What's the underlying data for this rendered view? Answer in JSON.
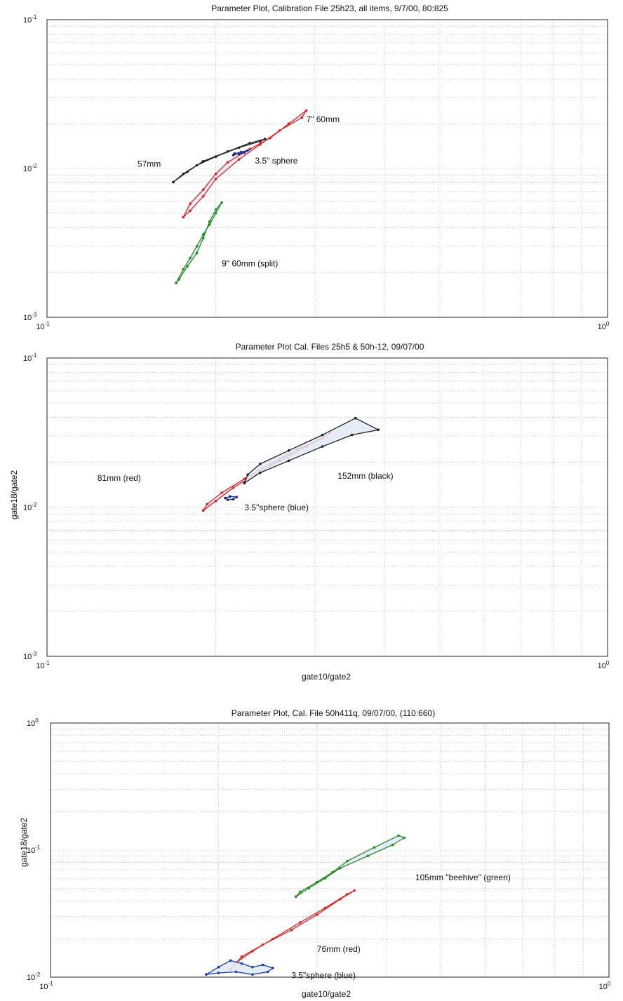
{
  "chart_data": [
    {
      "type": "line",
      "title": "Parameter Plot, Calibration File 25h23, all items, 9/7/00, 80:825",
      "xlabel": "",
      "ylabel": "",
      "xscale": "log",
      "yscale": "log",
      "xlim": [
        0.1,
        1
      ],
      "ylim": [
        0.001,
        0.1
      ],
      "grid": true,
      "x_ticks": [
        {
          "base": "10",
          "exp": "-1"
        },
        {
          "base": "10",
          "exp": "0"
        }
      ],
      "y_ticks": [
        {
          "base": "10",
          "exp": "-3"
        },
        {
          "base": "10",
          "exp": "-2"
        },
        {
          "base": "10",
          "exp": "-1"
        }
      ],
      "series": [
        {
          "color": "#e02020",
          "x": [
            0.175,
            0.18,
            0.19,
            0.2,
            0.21,
            0.23,
            0.25,
            0.27,
            0.29,
            0.285,
            0.26,
            0.24,
            0.22,
            0.2,
            0.19,
            0.18,
            0.175
          ],
          "y": [
            0.0047,
            0.0058,
            0.0072,
            0.0092,
            0.011,
            0.0135,
            0.016,
            0.02,
            0.0245,
            0.022,
            0.018,
            0.0145,
            0.0115,
            0.0085,
            0.0065,
            0.0052,
            0.0047
          ]
        },
        {
          "color": "#222222",
          "x": [
            0.168,
            0.175,
            0.185,
            0.2,
            0.22,
            0.24,
            0.245,
            0.23,
            0.21,
            0.19,
            0.178,
            0.168
          ],
          "y": [
            0.0081,
            0.0092,
            0.0105,
            0.012,
            0.0138,
            0.0152,
            0.0158,
            0.0148,
            0.013,
            0.0112,
            0.0095,
            0.0081
          ]
        },
        {
          "color": "#1a2a8a",
          "x": [
            0.215,
            0.22,
            0.225,
            0.228,
            0.222,
            0.216,
            0.215
          ],
          "y": [
            0.0123,
            0.0125,
            0.0128,
            0.0132,
            0.0129,
            0.0126,
            0.0123
          ]
        },
        {
          "color": "#228b22",
          "x": [
            0.17,
            0.175,
            0.18,
            0.185,
            0.19,
            0.195,
            0.2,
            0.205,
            0.2,
            0.195,
            0.19,
            0.185,
            0.178,
            0.172,
            0.17
          ],
          "y": [
            0.0017,
            0.0021,
            0.0025,
            0.003,
            0.0036,
            0.0042,
            0.005,
            0.0059,
            0.0053,
            0.0044,
            0.0034,
            0.0027,
            0.0022,
            0.0018,
            0.0017
          ]
        }
      ],
      "annotations": [
        {
          "text": "7\" 60mm",
          "x": 0.29,
          "y": 0.0205
        },
        {
          "text": "57mm",
          "x": 0.145,
          "y": 0.0103
        },
        {
          "text": "3.5\" sphere",
          "x": 0.235,
          "y": 0.0108
        },
        {
          "text": "9\" 60mm (split)",
          "x": 0.205,
          "y": 0.0022
        }
      ]
    },
    {
      "type": "line",
      "title": "Parameter Plot Cal. Files 25h5 & 50h-12, 09/07/00",
      "xlabel": "gate10/gate2",
      "ylabel": "gate18/gate2",
      "xscale": "log",
      "yscale": "log",
      "xlim": [
        0.1,
        1
      ],
      "ylim": [
        0.001,
        0.1
      ],
      "grid": true,
      "x_ticks": [
        {
          "base": "10",
          "exp": "-1"
        },
        {
          "base": "10",
          "exp": "0"
        }
      ],
      "y_ticks": [
        {
          "base": "10",
          "exp": "-3"
        },
        {
          "base": "10",
          "exp": "-2"
        },
        {
          "base": "10",
          "exp": "-1"
        }
      ],
      "series": [
        {
          "color": "#e02020",
          "x": [
            0.19,
            0.2,
            0.215,
            0.235,
            0.26,
            0.29,
            0.32,
            0.31,
            0.28,
            0.25,
            0.225,
            0.205,
            0.193,
            0.19
          ],
          "y": [
            0.0095,
            0.011,
            0.0135,
            0.0165,
            0.0205,
            0.0255,
            0.0315,
            0.029,
            0.0245,
            0.0195,
            0.0155,
            0.0125,
            0.0105,
            0.0095
          ]
        },
        {
          "color": "#222222",
          "x": [
            0.225,
            0.24,
            0.27,
            0.31,
            0.35,
            0.39,
            0.355,
            0.31,
            0.27,
            0.24,
            0.228,
            0.225
          ],
          "y": [
            0.0145,
            0.017,
            0.0205,
            0.0255,
            0.0305,
            0.033,
            0.0395,
            0.0305,
            0.024,
            0.0195,
            0.0165,
            0.0145
          ]
        },
        {
          "color": "#1a2a8a",
          "x": [
            0.208,
            0.212,
            0.218,
            0.215,
            0.21,
            0.208
          ],
          "y": [
            0.0115,
            0.0118,
            0.0117,
            0.0113,
            0.0112,
            0.0115
          ]
        }
      ],
      "annotations": [
        {
          "text": "81mm (red)",
          "x": 0.123,
          "y": 0.015
        },
        {
          "text": "152mm (black)",
          "x": 0.33,
          "y": 0.0155
        },
        {
          "text": "3.5\"sphere (blue)",
          "x": 0.225,
          "y": 0.0095
        }
      ]
    },
    {
      "type": "line",
      "title": "Parameter Plot, Cal. File 50h411q, 09/07/00, (110:660)",
      "xlabel": "gate10/gate2",
      "ylabel": "gate18/gate2",
      "xscale": "log",
      "yscale": "log",
      "xlim": [
        0.1,
        1
      ],
      "ylim": [
        0.01,
        1
      ],
      "grid": true,
      "x_ticks": [
        {
          "base": "10",
          "exp": "-1"
        },
        {
          "base": "10",
          "exp": "0"
        }
      ],
      "y_ticks": [
        {
          "base": "10",
          "exp": "-2"
        },
        {
          "base": "10",
          "exp": "-1"
        },
        {
          "base": "10",
          "exp": "0"
        }
      ],
      "series": [
        {
          "color": "#e02020",
          "x": [
            0.21,
            0.22,
            0.24,
            0.27,
            0.3,
            0.33,
            0.35,
            0.34,
            0.31,
            0.28,
            0.25,
            0.23,
            0.215,
            0.21
          ],
          "y": [
            0.0115,
            0.0145,
            0.018,
            0.0235,
            0.031,
            0.041,
            0.048,
            0.045,
            0.035,
            0.027,
            0.02,
            0.016,
            0.013,
            0.0115
          ]
        },
        {
          "color": "#228b22",
          "x": [
            0.275,
            0.29,
            0.31,
            0.33,
            0.37,
            0.41,
            0.43,
            0.42,
            0.38,
            0.34,
            0.32,
            0.3,
            0.28,
            0.275
          ],
          "y": [
            0.043,
            0.05,
            0.06,
            0.072,
            0.09,
            0.11,
            0.125,
            0.13,
            0.105,
            0.082,
            0.067,
            0.056,
            0.047,
            0.043
          ]
        },
        {
          "color": "#1a3ab0",
          "x": [
            0.19,
            0.2,
            0.21,
            0.22,
            0.23,
            0.24,
            0.25,
            0.245,
            0.23,
            0.215,
            0.2,
            0.19
          ],
          "y": [
            0.0105,
            0.012,
            0.0135,
            0.0128,
            0.012,
            0.0125,
            0.0118,
            0.011,
            0.0105,
            0.011,
            0.0108,
            0.0105
          ]
        }
      ],
      "annotations": [
        {
          "text": "105mm \"beehive\" (green)",
          "x": 0.45,
          "y": 0.058
        },
        {
          "text": "76mm (red)",
          "x": 0.3,
          "y": 0.0158
        },
        {
          "text": "3.5\"sphere (blue)",
          "x": 0.27,
          "y": 0.0098
        }
      ]
    }
  ]
}
